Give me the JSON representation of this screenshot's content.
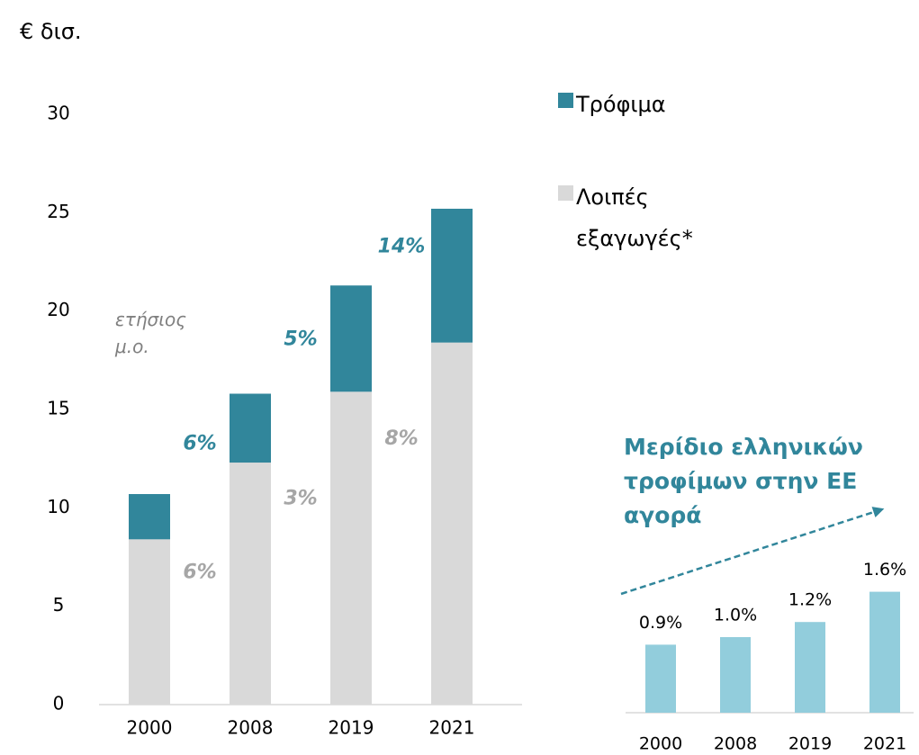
{
  "chart_data": [
    {
      "type": "bar",
      "stacked": true,
      "unit": "€ δισ.",
      "categories": [
        "2000",
        "2008",
        "2019",
        "2021"
      ],
      "series": [
        {
          "name": "Λοιπές εξαγωγές*",
          "color": "#d9d9d9",
          "values": [
            8.4,
            12.3,
            15.9,
            18.4
          ],
          "growth_labels": [
            "6%",
            "3%",
            "8%"
          ],
          "label_color": "#a6a6a6"
        },
        {
          "name": "Τρόφιμα",
          "color": "#31869b",
          "values": [
            2.3,
            3.5,
            5.4,
            6.8
          ],
          "growth_labels": [
            "6%",
            "5%",
            "14%"
          ],
          "label_color": "#31869b"
        }
      ],
      "annotation": "ετήσιος μ.ο.",
      "ylim": [
        0,
        30
      ],
      "yticks": [
        0,
        5,
        10,
        15,
        20,
        25,
        30
      ]
    },
    {
      "type": "bar",
      "title": "Μερίδιο ελληνικών τροφίμων στην ΕΕ αγορά",
      "categories": [
        "2000",
        "2008",
        "2019",
        "2021"
      ],
      "values": [
        0.9,
        1.0,
        1.2,
        1.6
      ],
      "value_labels": [
        "0.9%",
        "1.0%",
        "1.2%",
        "1.6%"
      ],
      "color": "#92cddc"
    }
  ]
}
